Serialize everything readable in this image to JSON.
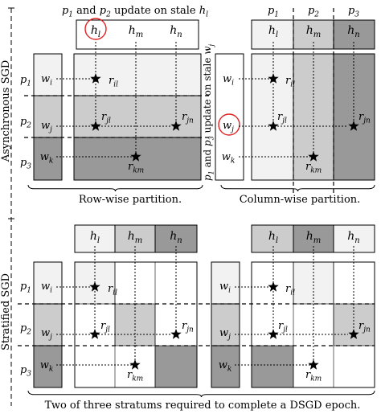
{
  "colors": {
    "light": "#f2f2f2",
    "mid": "#cccccc",
    "dark": "#999999",
    "white": "#ffffff",
    "highlight_circle": "#e02020",
    "line": "#000000"
  },
  "sections": {
    "async": {
      "label": "Asynchronous SGD",
      "row_wise": {
        "top_caption": "p1 and p2 update on stale hl",
        "h_labels": [
          "hl",
          "hm",
          "hn"
        ],
        "p_labels": [
          "p1",
          "p2",
          "p3"
        ],
        "w_labels": [
          "wi",
          "wj",
          "wk"
        ],
        "r_labels": [
          "ril",
          "rjl",
          "rjn",
          "rkm"
        ],
        "caption": "Row-wise partition."
      },
      "column_wise": {
        "side_caption": "p1 and p3 update on stale wj",
        "p_labels": [
          "p1",
          "p2",
          "p3"
        ],
        "h_labels": [
          "hl",
          "hm",
          "hn"
        ],
        "w_labels": [
          "wi",
          "wj",
          "wk"
        ],
        "r_labels": [
          "ril",
          "rjl",
          "rjn",
          "rkm"
        ],
        "caption": "Column-wise partition."
      }
    },
    "stratified": {
      "label": "Stratified SGD",
      "h_labels": [
        "hl",
        "hm",
        "hn"
      ],
      "p_labels": [
        "p1",
        "p2",
        "p3"
      ],
      "w_labels": [
        "wi",
        "wj",
        "wk"
      ],
      "r_labels": [
        "ril",
        "rjl",
        "rjn",
        "rkm"
      ],
      "caption": "Two of three stratums required to complete a DSGD epoch."
    }
  },
  "icons": {
    "marker": "star-icon",
    "highlight": "red-circle-icon"
  }
}
